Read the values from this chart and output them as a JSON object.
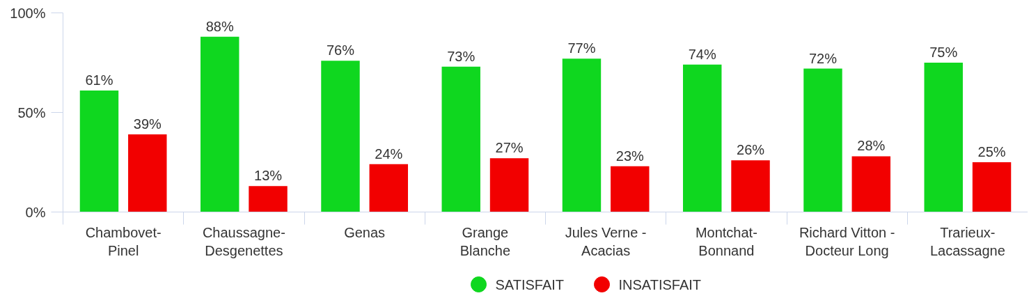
{
  "chart_data": {
    "type": "bar",
    "categories": [
      "Chambovet-Pinel",
      "Chaussagne-Desgenettes",
      "Genas",
      "Grange Blanche",
      "Jules Verne - Acacias",
      "Montchat-Bonnand",
      "Richard Vitton - Docteur Long",
      "Trarieux-Lacassagne"
    ],
    "series": [
      {
        "name": "SATISFAIT",
        "color": "#0fd71f",
        "values": [
          61,
          88,
          76,
          73,
          77,
          74,
          72,
          75
        ],
        "value_labels": [
          "61%",
          "88%",
          "76%",
          "73%",
          "77%",
          "74%",
          "72%",
          "75%"
        ]
      },
      {
        "name": "INSATISFAIT",
        "color": "#f20000",
        "values": [
          39,
          13,
          24,
          27,
          23,
          26,
          28,
          25
        ],
        "value_labels": [
          "39%",
          "13%",
          "24%",
          "27%",
          "23%",
          "26%",
          "28%",
          "25%"
        ]
      }
    ],
    "ylim": [
      0,
      100
    ],
    "yticks": [
      {
        "value": 0,
        "label": "0%"
      },
      {
        "value": 50,
        "label": "50%"
      },
      {
        "value": 100,
        "label": "100%"
      }
    ],
    "grid": false,
    "legend": "bottom"
  }
}
